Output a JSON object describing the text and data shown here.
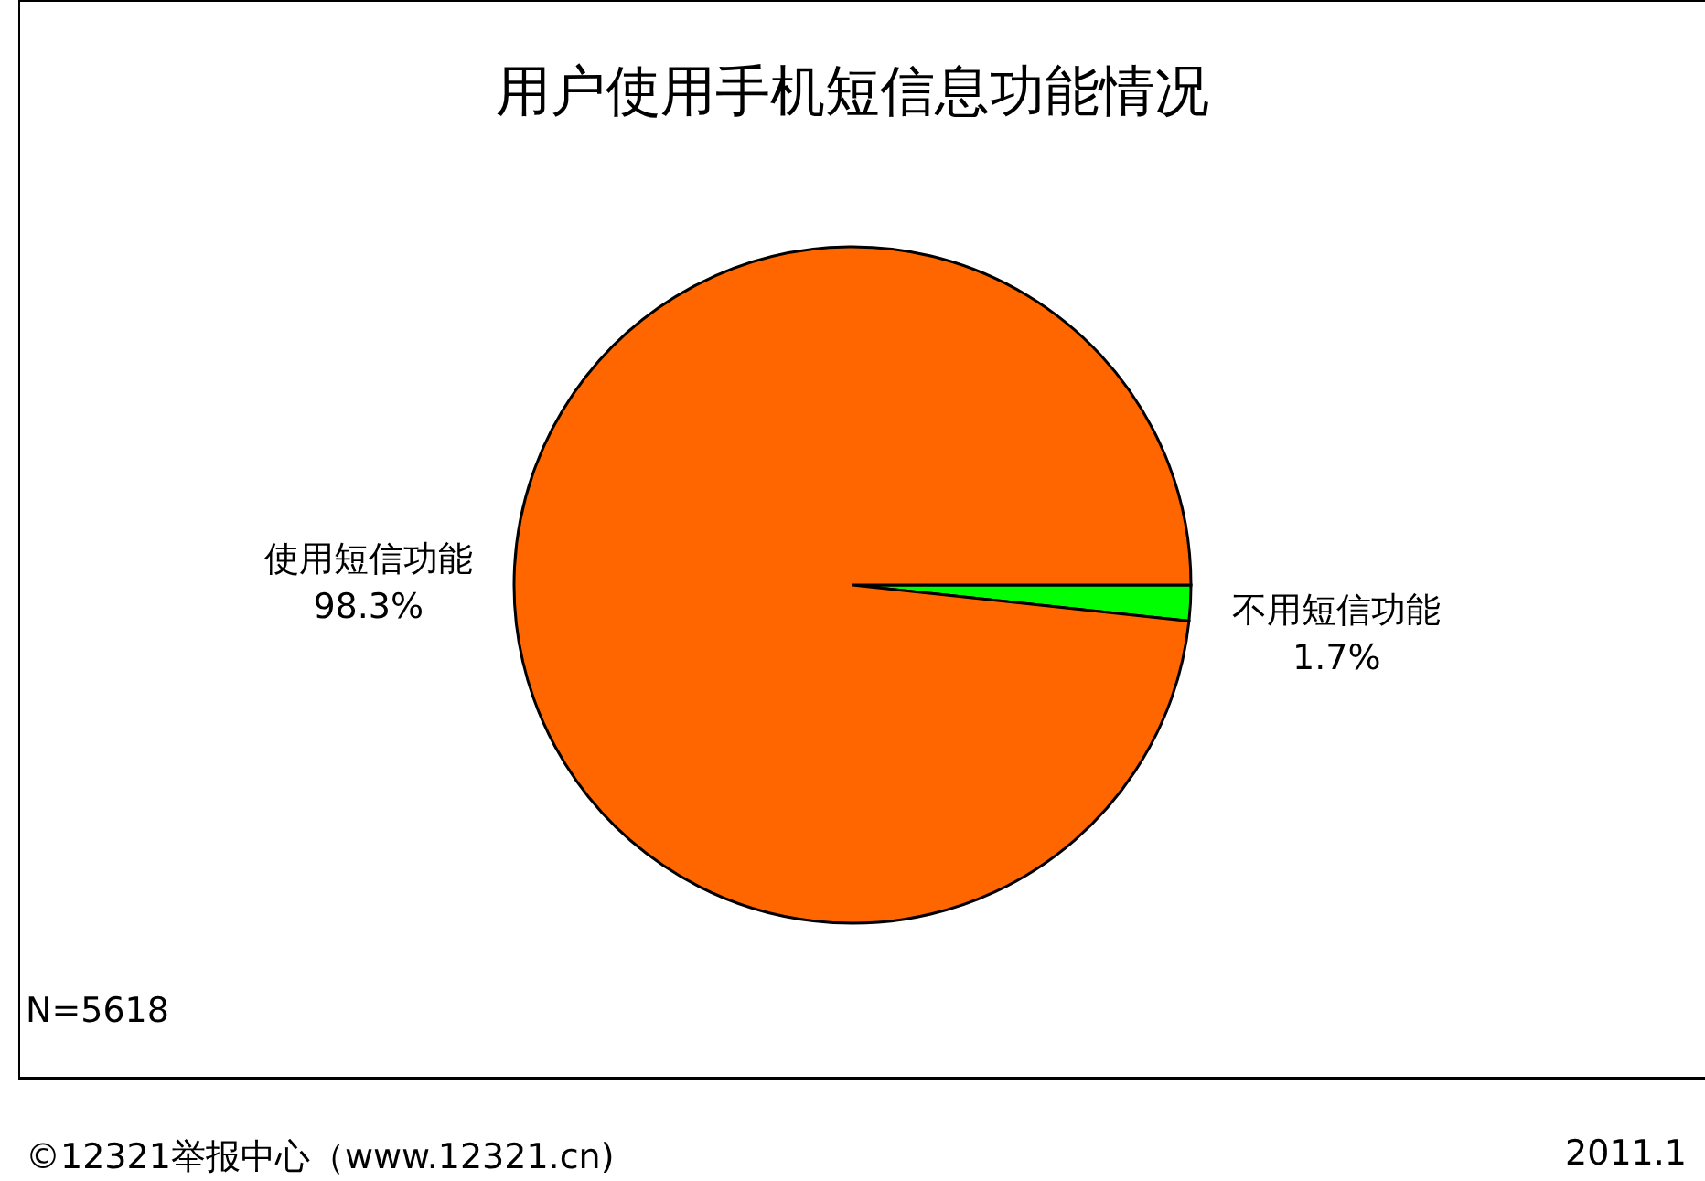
{
  "chart_data": {
    "type": "pie",
    "title": "用户使用手机短信息功能情况",
    "categories": [
      "不用短信功能",
      "使用短信功能"
    ],
    "values": [
      1.7,
      98.3
    ],
    "colors": [
      "#00ff00",
      "#ff6600"
    ],
    "value_labels": [
      "1.7%",
      "98.3%"
    ],
    "legend": false,
    "annotations": [
      "N=5618",
      "©12321举报中心（www.12321.cn)",
      "2011.1"
    ]
  }
}
